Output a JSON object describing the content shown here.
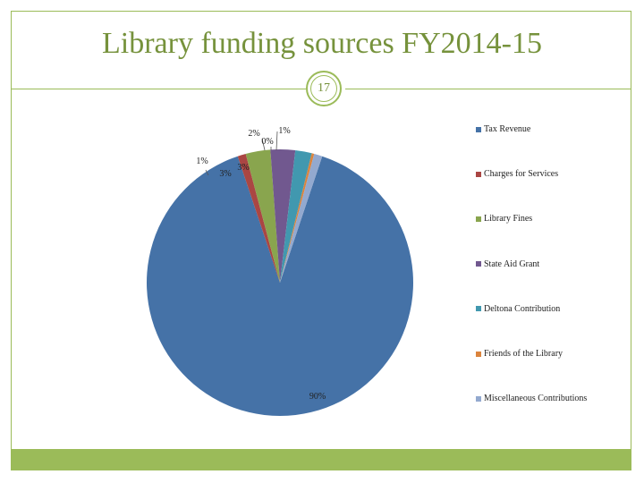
{
  "slide": {
    "title": "Library funding sources FY2014-15",
    "page_number": "17",
    "accent_color": "#9bbb59",
    "title_color": "#76923c"
  },
  "chart_data": {
    "type": "pie",
    "title": "",
    "legend_position": "right",
    "series": [
      {
        "name": "Tax Revenue",
        "value": 90,
        "label": "90%",
        "color": "#4572a7"
      },
      {
        "name": "Charges for Services",
        "value": 1,
        "label": "1%",
        "color": "#aa4643"
      },
      {
        "name": "Library Fines",
        "value": 3,
        "label": "3%",
        "color": "#89a54e"
      },
      {
        "name": "State Aid Grant",
        "value": 3,
        "label": "3%",
        "color": "#71588f"
      },
      {
        "name": "Deltona Contribution",
        "value": 2,
        "label": "2%",
        "color": "#4198af"
      },
      {
        "name": "Friends of the Library",
        "value": 0.3,
        "label": "0%",
        "color": "#db843d"
      },
      {
        "name": "Miscellaneous Contributions",
        "value": 1,
        "label": "1%",
        "color": "#93a9cf"
      }
    ]
  }
}
